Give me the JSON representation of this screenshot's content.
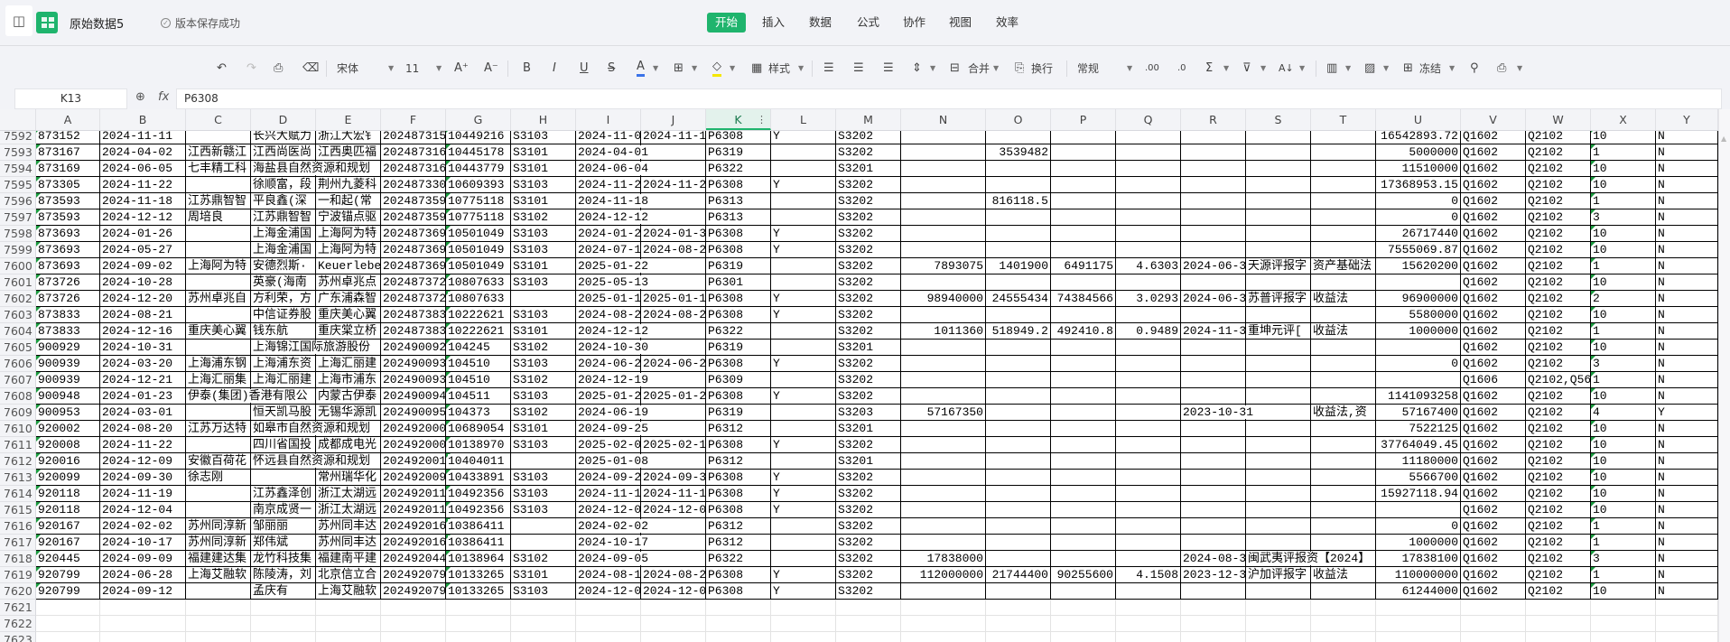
{
  "app": {
    "file_title": "原始数据5",
    "save_status": "版本保存成功",
    "icons": {
      "save": "save-icon",
      "app": "spreadsheet-app-icon",
      "status": "check-circle-icon"
    }
  },
  "menu": [
    {
      "label": "开始",
      "active": true
    },
    {
      "label": "插入"
    },
    {
      "label": "数据"
    },
    {
      "label": "公式"
    },
    {
      "label": "协作"
    },
    {
      "label": "视图"
    },
    {
      "label": "效率"
    }
  ],
  "toolbar": {
    "font_name": "宋体",
    "font_size": "11",
    "style_label": "样式",
    "merge_label": "合并",
    "wrap_label": "换行",
    "number_format": "常规",
    "freeze_label": "冻结",
    "font_color": "#3b73e8",
    "fill_color": "#f5e800"
  },
  "formula_bar": {
    "cell_ref": "K13",
    "formula_value": "P6308",
    "fx_label": "fx"
  },
  "accent_color": "#1fb46d",
  "sheet": {
    "columns": [
      "A",
      "B",
      "C",
      "D",
      "E",
      "F",
      "G",
      "H",
      "I",
      "J",
      "K",
      "L",
      "M",
      "N",
      "O",
      "P",
      "Q",
      "R",
      "S",
      "T",
      "U",
      "V",
      "W",
      "X",
      "Y"
    ],
    "selected_column": "K",
    "rows": [
      {
        "n": "7592",
        "c": [
          "873152",
          "2024-11-11",
          "",
          "长兴大赋力",
          "浙江大宏钅",
          "202487315",
          "10449216",
          "S3103",
          "2024-11-0",
          "2024-11-1",
          "P6308",
          "Y",
          "S3202",
          "",
          "",
          "",
          "",
          "",
          "",
          "",
          "16542893.72",
          "Q1602",
          "Q2102",
          "10",
          "N"
        ]
      },
      {
        "n": "7593",
        "c": [
          "873167",
          "2024-04-02",
          "江西新赣江",
          "江西尚医尚",
          "江西奥匹福",
          "202487316",
          "10445178",
          "S3101",
          "2024-04-01",
          "",
          "P6319",
          "",
          "S3202",
          "",
          "3539482",
          "",
          "",
          "",
          "",
          "",
          "5000000",
          "Q1602",
          "Q2102",
          "1",
          "N"
        ]
      },
      {
        "n": "7594",
        "c": [
          "873169",
          "2024-06-05",
          "七丰精工科",
          "海盐县自然资源和规划",
          "",
          "202487316",
          "10443779",
          "S3101",
          "2024-06-04",
          "",
          "P6322",
          "",
          "S3201",
          "",
          "",
          "",
          "",
          "",
          "",
          "",
          "11510000",
          "Q1602",
          "Q2102",
          "10",
          "N"
        ]
      },
      {
        "n": "7595",
        "c": [
          "873305",
          "2024-11-22",
          "",
          "徐顺富，段",
          "荆州九菱科",
          "202487330",
          "10609393",
          "S3103",
          "2024-11-2",
          "2024-11-2",
          "P6308",
          "Y",
          "S3202",
          "",
          "",
          "",
          "",
          "",
          "",
          "",
          "17368953.15",
          "Q1602",
          "Q2102",
          "10",
          "N"
        ]
      },
      {
        "n": "7596",
        "c": [
          "873593",
          "2024-11-18",
          "江苏鼎智智",
          "平良鑫(深",
          "一和起(常",
          "202487359",
          "10775118",
          "S3101",
          "2024-11-18",
          "",
          "P6313",
          "",
          "S3202",
          "",
          "816118.5",
          "",
          "",
          "",
          "",
          "",
          "0",
          "Q1602",
          "Q2102",
          "1",
          "N"
        ]
      },
      {
        "n": "7597",
        "c": [
          "873593",
          "2024-12-12",
          "周培良",
          "江苏鼎智智",
          "宁波锚点驱",
          "202487359",
          "10775118",
          "S3102",
          "2024-12-12",
          "",
          "P6313",
          "",
          "S3202",
          "",
          "",
          "",
          "",
          "",
          "",
          "",
          "0",
          "Q1602",
          "Q2102",
          "3",
          "N"
        ]
      },
      {
        "n": "7598",
        "c": [
          "873693",
          "2024-01-26",
          "",
          "上海金浦国",
          "上海阿为特",
          "202487369",
          "10501049",
          "S3103",
          "2024-01-2",
          "2024-01-3",
          "P6308",
          "Y",
          "S3202",
          "",
          "",
          "",
          "",
          "",
          "",
          "",
          "26717440",
          "Q1602",
          "Q2102",
          "10",
          "N"
        ]
      },
      {
        "n": "7599",
        "c": [
          "873693",
          "2024-05-27",
          "",
          "上海金浦国",
          "上海阿为特",
          "202487369",
          "10501049",
          "S3103",
          "2024-07-1",
          "2024-08-2",
          "P6308",
          "Y",
          "S3202",
          "",
          "",
          "",
          "",
          "",
          "",
          "",
          "7555069.87",
          "Q1602",
          "Q2102",
          "10",
          "N"
        ]
      },
      {
        "n": "7600",
        "c": [
          "873693",
          "2024-09-02",
          "上海阿为特",
          "安德烈斯·",
          "Keuerlebe",
          "202487369",
          "10501049",
          "S3101",
          "2025-01-22",
          "",
          "P6319",
          "",
          "S3202",
          "7893075",
          "1401900",
          "6491175",
          "4.6303",
          "2024-06-3",
          "天源评报字",
          "资产基础法",
          "15620200",
          "Q1602",
          "Q2102",
          "1",
          "N"
        ]
      },
      {
        "n": "7601",
        "c": [
          "873726",
          "2024-10-28",
          "",
          "英豪(海南",
          "苏州卓兆点",
          "202487372",
          "10807633",
          "S3103",
          "2025-05-13",
          "",
          "P6301",
          "",
          "S3202",
          "",
          "",
          "",
          "",
          "",
          "",
          "",
          "",
          "Q1602",
          "Q2102",
          "10",
          "N"
        ]
      },
      {
        "n": "7602",
        "c": [
          "873726",
          "2024-12-20",
          "苏州卓兆自",
          "方利荣，方",
          "广东浦森智",
          "202487372",
          "10807633",
          "",
          "2025-01-1",
          "2025-01-1",
          "P6308",
          "Y",
          "S3202",
          "98940000",
          "24555434",
          "74384566",
          "3.0293",
          "2024-06-3",
          "苏普评报字",
          "收益法",
          "96900000",
          "Q1602",
          "Q2102",
          "2",
          "N"
        ]
      },
      {
        "n": "7603",
        "c": [
          "873833",
          "2024-08-21",
          "",
          "中信证券股",
          "重庆美心翼",
          "202487383",
          "10222621",
          "S3103",
          "2024-08-2",
          "2024-08-2",
          "P6308",
          "Y",
          "S3202",
          "",
          "",
          "",
          "",
          "",
          "",
          "",
          "5580000",
          "Q1602",
          "Q2102",
          "10",
          "N"
        ]
      },
      {
        "n": "7604",
        "c": [
          "873833",
          "2024-12-16",
          "重庆美心翼",
          "钱东航",
          "重庆棠立桥",
          "202487383",
          "10222621",
          "S3101",
          "2024-12-12",
          "",
          "P6322",
          "",
          "S3202",
          "1011360",
          "518949.2",
          "492410.8",
          "0.9489",
          "2024-11-3",
          "重坤元评[",
          "收益法",
          "1000000",
          "Q1602",
          "Q2102",
          "1",
          "N"
        ]
      },
      {
        "n": "7605",
        "c": [
          "900929",
          "2024-10-31",
          "",
          "上海锦江国际旅游股份",
          "",
          "202490092",
          "104245",
          "S3102",
          "2024-10-30",
          "",
          "P6319",
          "",
          "S3201",
          "",
          "",
          "",
          "",
          "",
          "",
          "",
          "",
          "Q1602",
          "Q2102",
          "10",
          "N"
        ]
      },
      {
        "n": "7606",
        "c": [
          "900939",
          "2024-03-20",
          "上海浦东钢",
          "上海浦东资",
          "上海汇丽建",
          "202490093",
          "104510",
          "S3103",
          "2024-06-2",
          "2024-06-2",
          "P6308",
          "Y",
          "S3202",
          "",
          "",
          "",
          "",
          "",
          "",
          "",
          "0",
          "Q1602",
          "Q2102",
          "3",
          "N"
        ]
      },
      {
        "n": "7607",
        "c": [
          "900939",
          "2024-12-21",
          "上海汇丽集",
          "上海汇丽建",
          "上海市浦东",
          "202490093",
          "104510",
          "S3102",
          "2024-12-19",
          "",
          "P6309",
          "",
          "S3202",
          "",
          "",
          "",
          "",
          "",
          "",
          "",
          "",
          "Q1606",
          "Q2102,Q56",
          "1",
          "N"
        ]
      },
      {
        "n": "7608",
        "c": [
          "900948",
          "2024-01-23",
          "伊泰(集团)香港有限公",
          "",
          "内蒙古伊泰",
          "202490094",
          "104511",
          "S3103",
          "2025-01-2",
          "2025-01-2",
          "P6308",
          "Y",
          "S3202",
          "",
          "",
          "",
          "",
          "",
          "",
          "",
          "1141093258",
          "Q1602",
          "Q2102",
          "10",
          "N"
        ]
      },
      {
        "n": "7609",
        "c": [
          "900953",
          "2024-03-01",
          "",
          "恒天凯马股",
          "无锡华源凯",
          "202490095",
          "104373",
          "S3102",
          "2024-06-19",
          "",
          "P6319",
          "",
          "S3203",
          "57167350",
          "",
          "",
          "",
          "2023-10-31",
          "",
          "收益法,资",
          "57167400",
          "Q1602",
          "Q2102",
          "4",
          "Y"
        ]
      },
      {
        "n": "7610",
        "c": [
          "920002",
          "2024-08-20",
          "江苏万达特",
          "如皋市自然资源和规划",
          "",
          "202492000",
          "10689054",
          "S3101",
          "2024-09-25",
          "",
          "P6312",
          "",
          "S3201",
          "",
          "",
          "",
          "",
          "",
          "",
          "",
          "7522125",
          "Q1602",
          "Q2102",
          "10",
          "N"
        ]
      },
      {
        "n": "7611",
        "c": [
          "920008",
          "2024-11-22",
          "",
          "四川省国投",
          "成都成电光",
          "202492000",
          "10138970",
          "S3103",
          "2025-02-0",
          "2025-02-1",
          "P6308",
          "Y",
          "S3202",
          "",
          "",
          "",
          "",
          "",
          "",
          "",
          "37764049.45",
          "Q1602",
          "Q2102",
          "10",
          "N"
        ]
      },
      {
        "n": "7612",
        "c": [
          "920016",
          "2024-12-09",
          "安徽百荷花",
          "怀远县自然资源和规划",
          "",
          "202492001",
          "10404011",
          "",
          "2025-01-08",
          "",
          "P6312",
          "",
          "S3201",
          "",
          "",
          "",
          "",
          "",
          "",
          "",
          "11180000",
          "Q1602",
          "Q2102",
          "10",
          "N"
        ]
      },
      {
        "n": "7613",
        "c": [
          "920099",
          "2024-09-30",
          "徐志刚",
          "",
          "常州瑞华化",
          "202492009",
          "10433891",
          "S3103",
          "2024-09-2",
          "2024-09-3",
          "P6308",
          "Y",
          "S3202",
          "",
          "",
          "",
          "",
          "",
          "",
          "",
          "5566700",
          "Q1602",
          "Q2102",
          "10",
          "N"
        ]
      },
      {
        "n": "7614",
        "c": [
          "920118",
          "2024-11-19",
          "",
          "江苏鑫泽创",
          "浙江太湖远",
          "202492011",
          "10492356",
          "S3103",
          "2024-11-1",
          "2024-11-1",
          "P6308",
          "Y",
          "S3202",
          "",
          "",
          "",
          "",
          "",
          "",
          "",
          "15927118.94",
          "Q1602",
          "Q2102",
          "10",
          "N"
        ]
      },
      {
        "n": "7615",
        "c": [
          "920118",
          "2024-12-04",
          "",
          "南京成贤一",
          "浙江太湖远",
          "202492011",
          "10492356",
          "S3103",
          "2024-12-0",
          "2024-12-0",
          "P6308",
          "Y",
          "S3202",
          "",
          "",
          "",
          "",
          "",
          "",
          "",
          "",
          "Q1602",
          "Q2102",
          "10",
          "N"
        ]
      },
      {
        "n": "7616",
        "c": [
          "920167",
          "2024-02-02",
          "苏州同淳新",
          "邹丽丽",
          "苏州同丰达",
          "202492016",
          "10386411",
          "",
          "2024-02-02",
          "",
          "P6312",
          "",
          "S3202",
          "",
          "",
          "",
          "",
          "",
          "",
          "",
          "0",
          "Q1602",
          "Q2102",
          "1",
          "N"
        ]
      },
      {
        "n": "7617",
        "c": [
          "920167",
          "2024-10-17",
          "苏州同淳新",
          "郑伟斌",
          "苏州同丰达",
          "202492016",
          "10386411",
          "",
          "2024-10-17",
          "",
          "P6312",
          "",
          "S3202",
          "",
          "",
          "",
          "",
          "",
          "",
          "",
          "1000000",
          "Q1602",
          "Q2102",
          "1",
          "N"
        ]
      },
      {
        "n": "7618",
        "c": [
          "920445",
          "2024-09-09",
          "福建建达集",
          "龙竹科技集",
          "福建南平建",
          "202492044",
          "10138964",
          "S3102",
          "2024-09-05",
          "",
          "P6322",
          "",
          "S3202",
          "17838000",
          "",
          "",
          "",
          "2024-08-3",
          "闽武夷评报资【2024】",
          "",
          "17838100",
          "Q1602",
          "Q2102",
          "3",
          "N"
        ]
      },
      {
        "n": "7619",
        "c": [
          "920799",
          "2024-06-28",
          "上海艾融软",
          "陈陵涛，刘",
          "北京信立合",
          "202492079",
          "10133265",
          "S3101",
          "2024-08-1",
          "2024-08-2",
          "P6308",
          "Y",
          "S3202",
          "112000000",
          "21744400",
          "90255600",
          "4.1508",
          "2023-12-3",
          "沪加评报字",
          "收益法",
          "110000000",
          "Q1602",
          "Q2102",
          "1",
          "N"
        ]
      },
      {
        "n": "7620",
        "c": [
          "920799",
          "2024-09-12",
          "",
          "孟庆有",
          "上海艾融软",
          "202492079",
          "10133265",
          "S3103",
          "2024-12-0",
          "2024-12-0",
          "P6308",
          "Y",
          "S3202",
          "",
          "",
          "",
          "",
          "",
          "",
          "",
          "61244000",
          "Q1602",
          "Q2102",
          "10",
          "N"
        ]
      }
    ],
    "empty_rows": [
      "7621",
      "7622",
      "7623"
    ]
  }
}
